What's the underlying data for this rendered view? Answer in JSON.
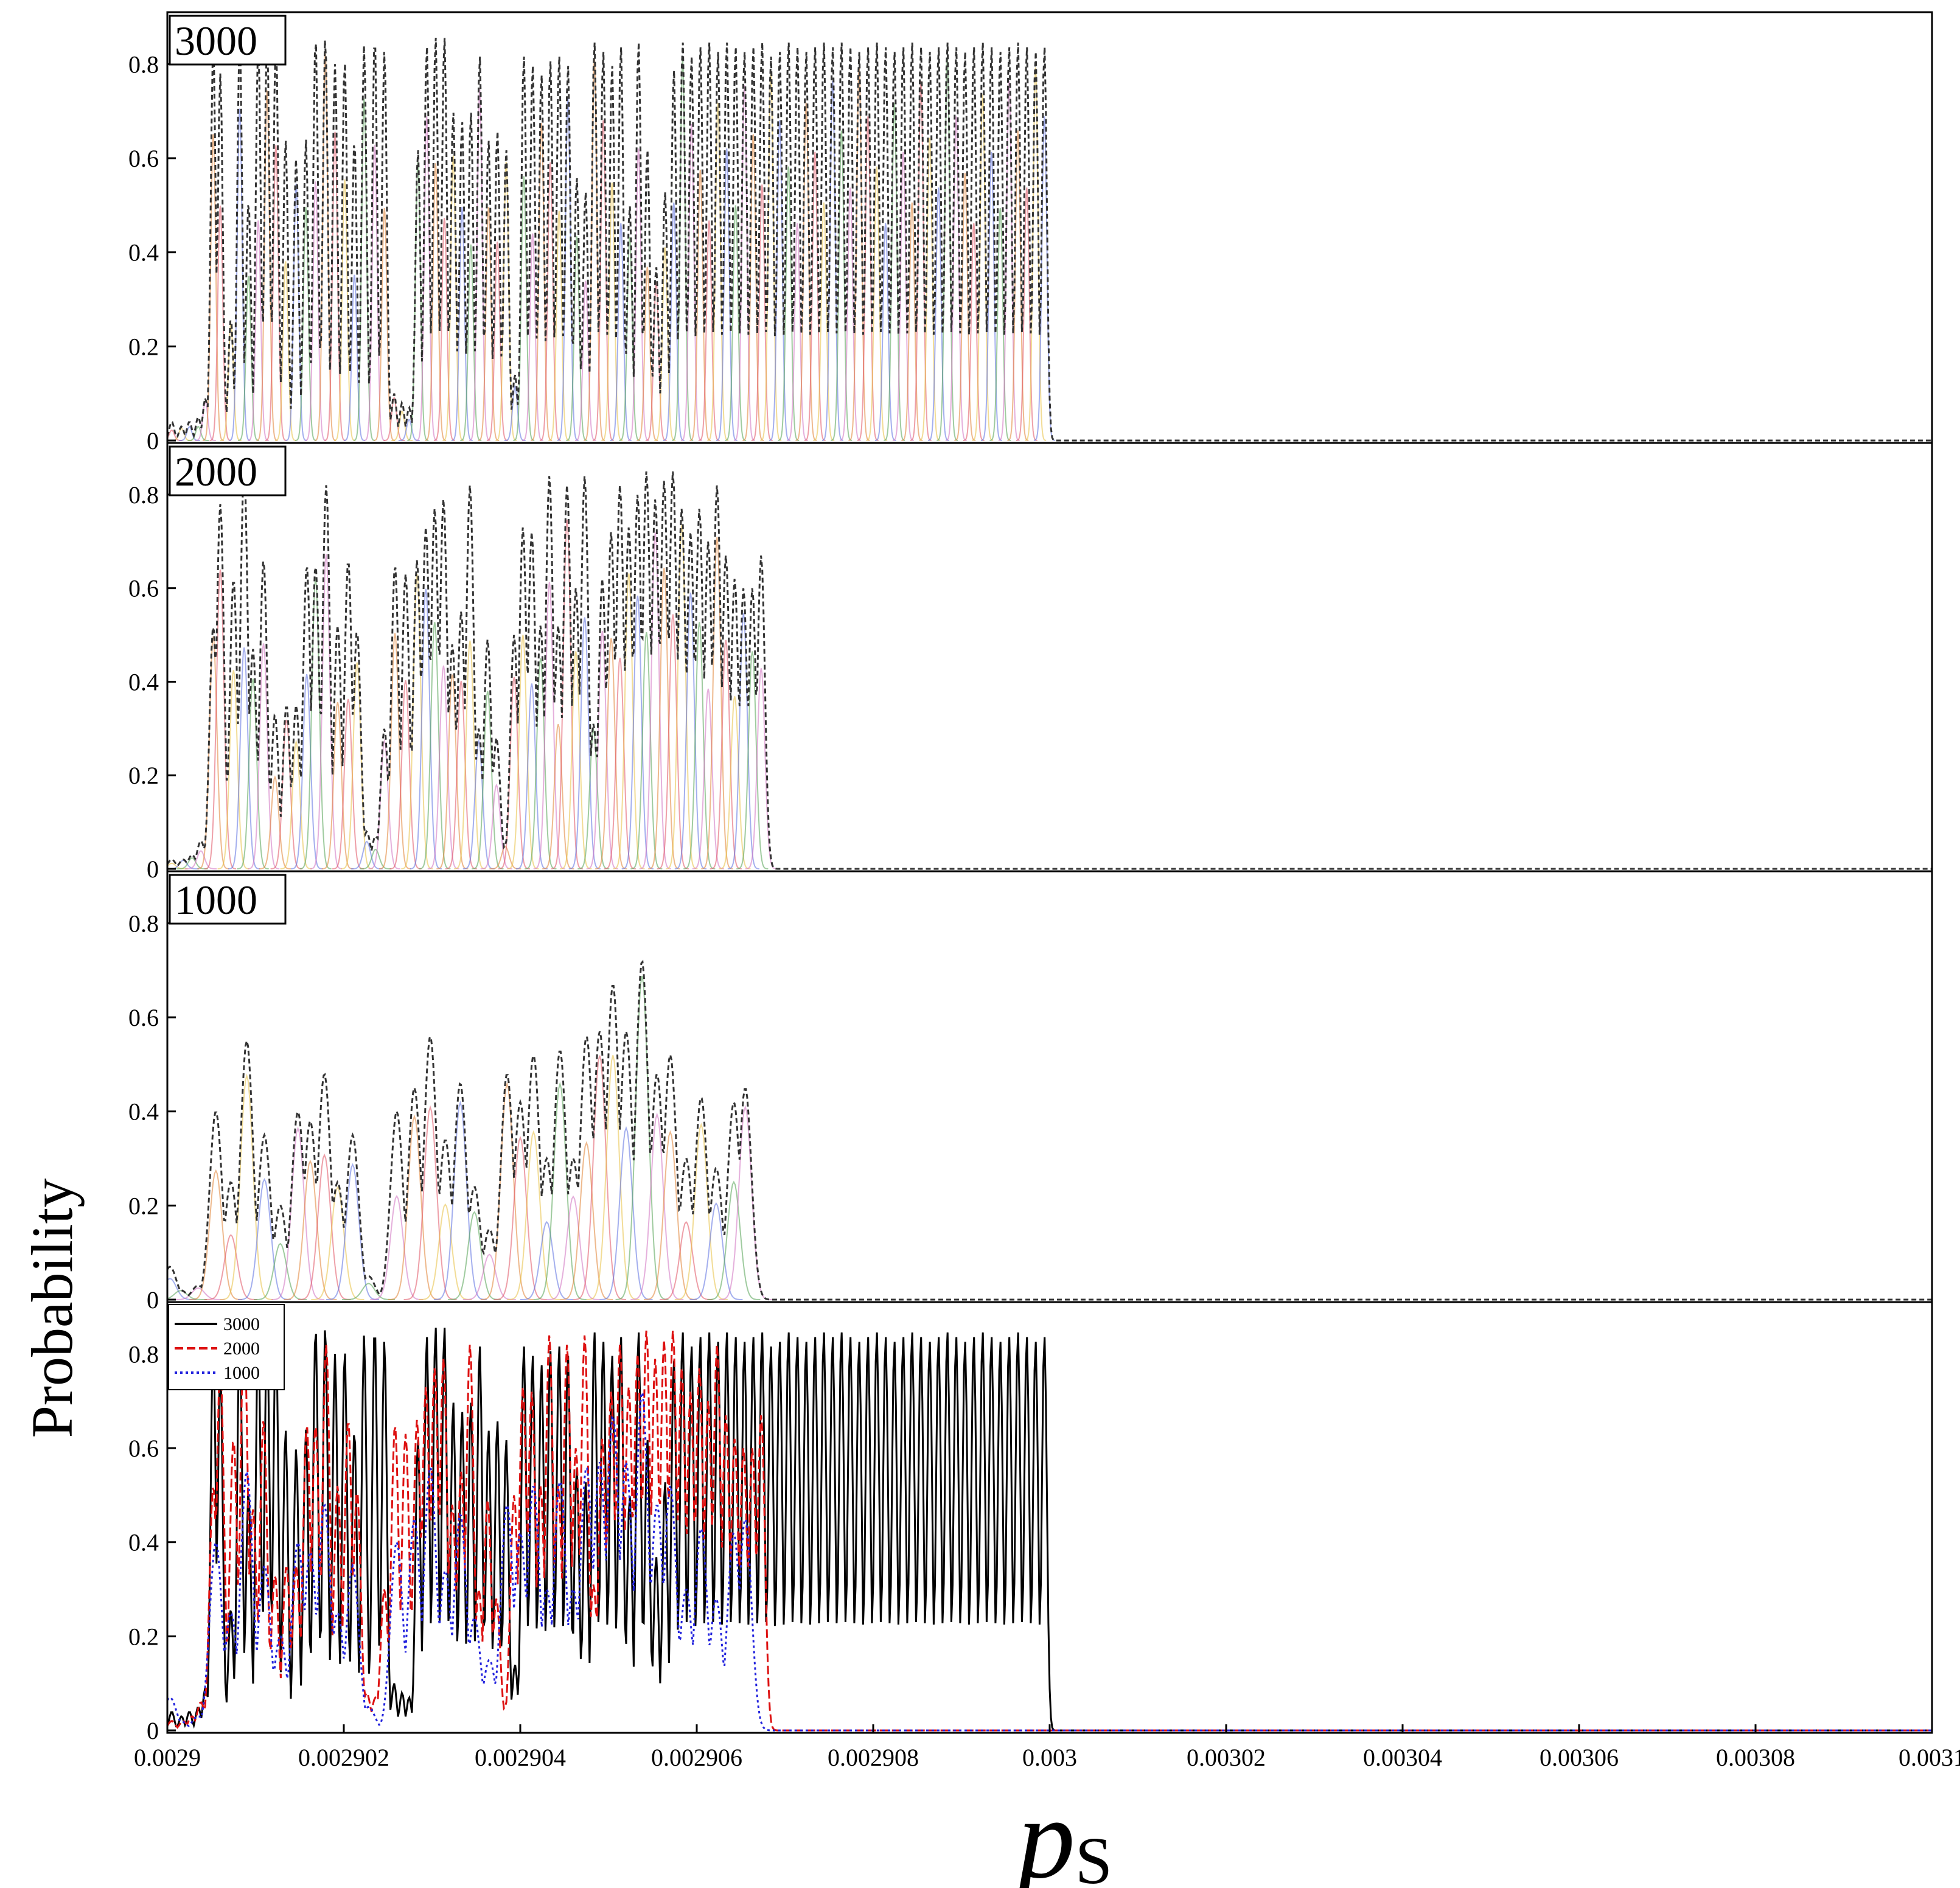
{
  "chart_data": {
    "type": "line",
    "ylabel": "Probability",
    "xlabel": "p",
    "xlabel_subscript": "S",
    "xlim": [
      0.0029,
      0.0031
    ],
    "ylim": [
      0,
      0.9
    ],
    "x_ticks": [
      "0.0029",
      "0.002902",
      "0.002904",
      "0.002906",
      "0.002908",
      "0.003",
      "0.00302",
      "0.00304",
      "0.00306",
      "0.00308",
      "0.0031"
    ],
    "y_ticks": [
      "0",
      "0.2",
      "0.4",
      "0.6",
      "0.8"
    ],
    "component_colors": [
      "#e05060",
      "#e8c040",
      "#5a6ee0",
      "#50a050",
      "#d070c0",
      "#e08030"
    ],
    "envelope_color": "#333333",
    "panels": [
      {
        "label": "3000",
        "envelope_peaks": [
          [
            0.0029005,
            0.04
          ],
          [
            0.0029016,
            0.03
          ],
          [
            0.0029025,
            0.04
          ],
          [
            0.0029035,
            0.05
          ],
          [
            0.0029043,
            0.09
          ],
          [
            0.0029052,
            0.84
          ],
          [
            0.002906,
            0.78
          ],
          [
            0.0029072,
            0.26
          ],
          [
            0.0029082,
            0.86
          ],
          [
            0.0029092,
            0.51
          ],
          [
            0.0029103,
            0.85
          ],
          [
            0.0029113,
            0.86
          ],
          [
            0.0029123,
            0.86
          ],
          [
            0.0029134,
            0.64
          ],
          [
            0.0029146,
            0.6
          ],
          [
            0.0029157,
            0.64
          ],
          [
            0.0029168,
            0.86
          ],
          [
            0.0029179,
            0.86
          ],
          [
            0.002919,
            0.8
          ],
          [
            0.0029201,
            0.81
          ],
          [
            0.0029212,
            0.64
          ],
          [
            0.0029223,
            0.84
          ],
          [
            0.0029235,
            0.86
          ],
          [
            0.0029246,
            0.83
          ],
          [
            0.0029257,
            0.1
          ],
          [
            0.0029266,
            0.08
          ],
          [
            0.0029274,
            0.07
          ],
          [
            0.0029284,
            0.62
          ],
          [
            0.0029294,
            0.84
          ],
          [
            0.0029304,
            0.86
          ],
          [
            0.0029314,
            0.86
          ],
          [
            0.0029324,
            0.7
          ],
          [
            0.0029334,
            0.68
          ],
          [
            0.0029344,
            0.7
          ],
          [
            0.0029354,
            0.82
          ],
          [
            0.0029364,
            0.64
          ],
          [
            0.0029374,
            0.66
          ],
          [
            0.0029384,
            0.62
          ],
          [
            0.0029394,
            0.14
          ],
          [
            0.0029404,
            0.82
          ],
          [
            0.0029414,
            0.8
          ],
          [
            0.0029424,
            0.78
          ],
          [
            0.0029434,
            0.81
          ],
          [
            0.0029444,
            0.82
          ],
          [
            0.0029454,
            0.8
          ],
          [
            0.0029464,
            0.56
          ],
          [
            0.0029474,
            0.53
          ],
          [
            0.0029484,
            0.85
          ],
          [
            0.0029494,
            0.83
          ],
          [
            0.0029504,
            0.8
          ],
          [
            0.0029514,
            0.84
          ],
          [
            0.0029524,
            0.5
          ],
          [
            0.0029534,
            0.85
          ],
          [
            0.0029544,
            0.62
          ],
          [
            0.0029554,
            0.37
          ],
          [
            0.0029564,
            0.53
          ],
          [
            0.0029574,
            0.79
          ],
          [
            0.0029584,
            0.85
          ],
          [
            0.0029594,
            0.82
          ],
          [
            0.0029604,
            0.84
          ],
          [
            0.0029614,
            0.85
          ],
          [
            0.0029624,
            0.83
          ],
          [
            0.0029634,
            0.85
          ],
          [
            0.0029644,
            0.84
          ],
          [
            0.0029654,
            0.83
          ],
          [
            0.0029664,
            0.84
          ],
          [
            0.0029674,
            0.85
          ],
          [
            0.0029684,
            0.82
          ],
          [
            0.0029694,
            0.83
          ],
          [
            0.0029704,
            0.85
          ],
          [
            0.0029714,
            0.84
          ],
          [
            0.0029724,
            0.83
          ],
          [
            0.0029734,
            0.84
          ],
          [
            0.0029744,
            0.85
          ],
          [
            0.0029754,
            0.84
          ],
          [
            0.0029764,
            0.85
          ],
          [
            0.0029774,
            0.84
          ],
          [
            0.0029784,
            0.83
          ],
          [
            0.0029794,
            0.84
          ],
          [
            0.0029804,
            0.85
          ],
          [
            0.0029814,
            0.84
          ],
          [
            0.0029824,
            0.83
          ],
          [
            0.0029834,
            0.84
          ],
          [
            0.0029844,
            0.85
          ],
          [
            0.0029854,
            0.84
          ],
          [
            0.0029864,
            0.83
          ],
          [
            0.0029874,
            0.84
          ],
          [
            0.0029884,
            0.85
          ],
          [
            0.0029894,
            0.84
          ],
          [
            0.0029904,
            0.83
          ],
          [
            0.0029914,
            0.84
          ],
          [
            0.0029924,
            0.85
          ],
          [
            0.0029934,
            0.84
          ],
          [
            0.0029944,
            0.83
          ],
          [
            0.0029954,
            0.84
          ],
          [
            0.0029964,
            0.85
          ],
          [
            0.0029974,
            0.84
          ],
          [
            0.0029984,
            0.83
          ],
          [
            0.0029994,
            0.84
          ]
        ]
      },
      {
        "label": "2000",
        "envelope_peaks": [
          [
            0.0029005,
            0.02
          ],
          [
            0.0029018,
            0.02
          ],
          [
            0.0029028,
            0.03
          ],
          [
            0.0029038,
            0.06
          ],
          [
            0.0029052,
            0.52
          ],
          [
            0.002906,
            0.78
          ],
          [
            0.0029075,
            0.62
          ],
          [
            0.0029087,
            0.86
          ],
          [
            0.0029097,
            0.47
          ],
          [
            0.0029109,
            0.66
          ],
          [
            0.0029122,
            0.33
          ],
          [
            0.0029135,
            0.35
          ],
          [
            0.0029146,
            0.35
          ],
          [
            0.0029158,
            0.65
          ],
          [
            0.0029168,
            0.65
          ],
          [
            0.002918,
            0.82
          ],
          [
            0.0029193,
            0.52
          ],
          [
            0.0029205,
            0.66
          ],
          [
            0.0029215,
            0.51
          ],
          [
            0.0029226,
            0.08
          ],
          [
            0.0029236,
            0.07
          ],
          [
            0.0029246,
            0.3
          ],
          [
            0.0029258,
            0.65
          ],
          [
            0.002927,
            0.63
          ],
          [
            0.0029283,
            0.66
          ],
          [
            0.0029293,
            0.73
          ],
          [
            0.0029303,
            0.77
          ],
          [
            0.0029313,
            0.79
          ],
          [
            0.0029323,
            0.48
          ],
          [
            0.0029333,
            0.55
          ],
          [
            0.0029343,
            0.82
          ],
          [
            0.0029353,
            0.3
          ],
          [
            0.0029363,
            0.49
          ],
          [
            0.0029373,
            0.28
          ],
          [
            0.0029383,
            0.05
          ],
          [
            0.0029393,
            0.5
          ],
          [
            0.0029403,
            0.73
          ],
          [
            0.0029413,
            0.72
          ],
          [
            0.0029423,
            0.52
          ],
          [
            0.0029433,
            0.84
          ],
          [
            0.0029443,
            0.52
          ],
          [
            0.0029453,
            0.82
          ],
          [
            0.0029463,
            0.6
          ],
          [
            0.0029473,
            0.84
          ],
          [
            0.0029483,
            0.31
          ],
          [
            0.0029493,
            0.62
          ],
          [
            0.0029503,
            0.72
          ],
          [
            0.0029513,
            0.82
          ],
          [
            0.0029523,
            0.73
          ],
          [
            0.0029533,
            0.8
          ],
          [
            0.0029543,
            0.85
          ],
          [
            0.0029553,
            0.79
          ],
          [
            0.0029563,
            0.83
          ],
          [
            0.0029573,
            0.85
          ],
          [
            0.0029583,
            0.77
          ],
          [
            0.0029593,
            0.72
          ],
          [
            0.0029603,
            0.77
          ],
          [
            0.0029613,
            0.7
          ],
          [
            0.0029623,
            0.82
          ],
          [
            0.0029633,
            0.67
          ],
          [
            0.0029643,
            0.62
          ],
          [
            0.0029653,
            0.6
          ],
          [
            0.0029663,
            0.6
          ],
          [
            0.0029673,
            0.67
          ]
        ]
      },
      {
        "label": "1000",
        "envelope_peaks": [
          [
            0.0029003,
            0.07
          ],
          [
            0.0029015,
            0.02
          ],
          [
            0.0029035,
            0.03
          ],
          [
            0.0029055,
            0.4
          ],
          [
            0.0029072,
            0.25
          ],
          [
            0.002909,
            0.55
          ],
          [
            0.002911,
            0.35
          ],
          [
            0.0029128,
            0.2
          ],
          [
            0.0029148,
            0.4
          ],
          [
            0.0029162,
            0.38
          ],
          [
            0.0029178,
            0.48
          ],
          [
            0.0029193,
            0.25
          ],
          [
            0.002921,
            0.35
          ],
          [
            0.0029228,
            0.05
          ],
          [
            0.002926,
            0.4
          ],
          [
            0.002928,
            0.45
          ],
          [
            0.0029298,
            0.56
          ],
          [
            0.0029315,
            0.34
          ],
          [
            0.0029332,
            0.46
          ],
          [
            0.0029348,
            0.24
          ],
          [
            0.0029365,
            0.15
          ],
          [
            0.0029385,
            0.48
          ],
          [
            0.00294,
            0.42
          ],
          [
            0.0029415,
            0.52
          ],
          [
            0.002943,
            0.3
          ],
          [
            0.0029445,
            0.53
          ],
          [
            0.002946,
            0.3
          ],
          [
            0.0029475,
            0.56
          ],
          [
            0.002949,
            0.57
          ],
          [
            0.0029505,
            0.67
          ],
          [
            0.002952,
            0.57
          ],
          [
            0.0029538,
            0.72
          ],
          [
            0.0029555,
            0.48
          ],
          [
            0.002957,
            0.52
          ],
          [
            0.0029588,
            0.3
          ],
          [
            0.0029605,
            0.43
          ],
          [
            0.0029622,
            0.28
          ],
          [
            0.0029642,
            0.42
          ],
          [
            0.0029655,
            0.45
          ]
        ]
      }
    ],
    "comparison_panel": {
      "series": [
        {
          "name": "3000",
          "style": "solid",
          "color": "#000000"
        },
        {
          "name": "2000",
          "style": "dashed",
          "color": "#dd1111"
        },
        {
          "name": "1000",
          "style": "dotted",
          "color": "#2222dd"
        }
      ]
    }
  }
}
